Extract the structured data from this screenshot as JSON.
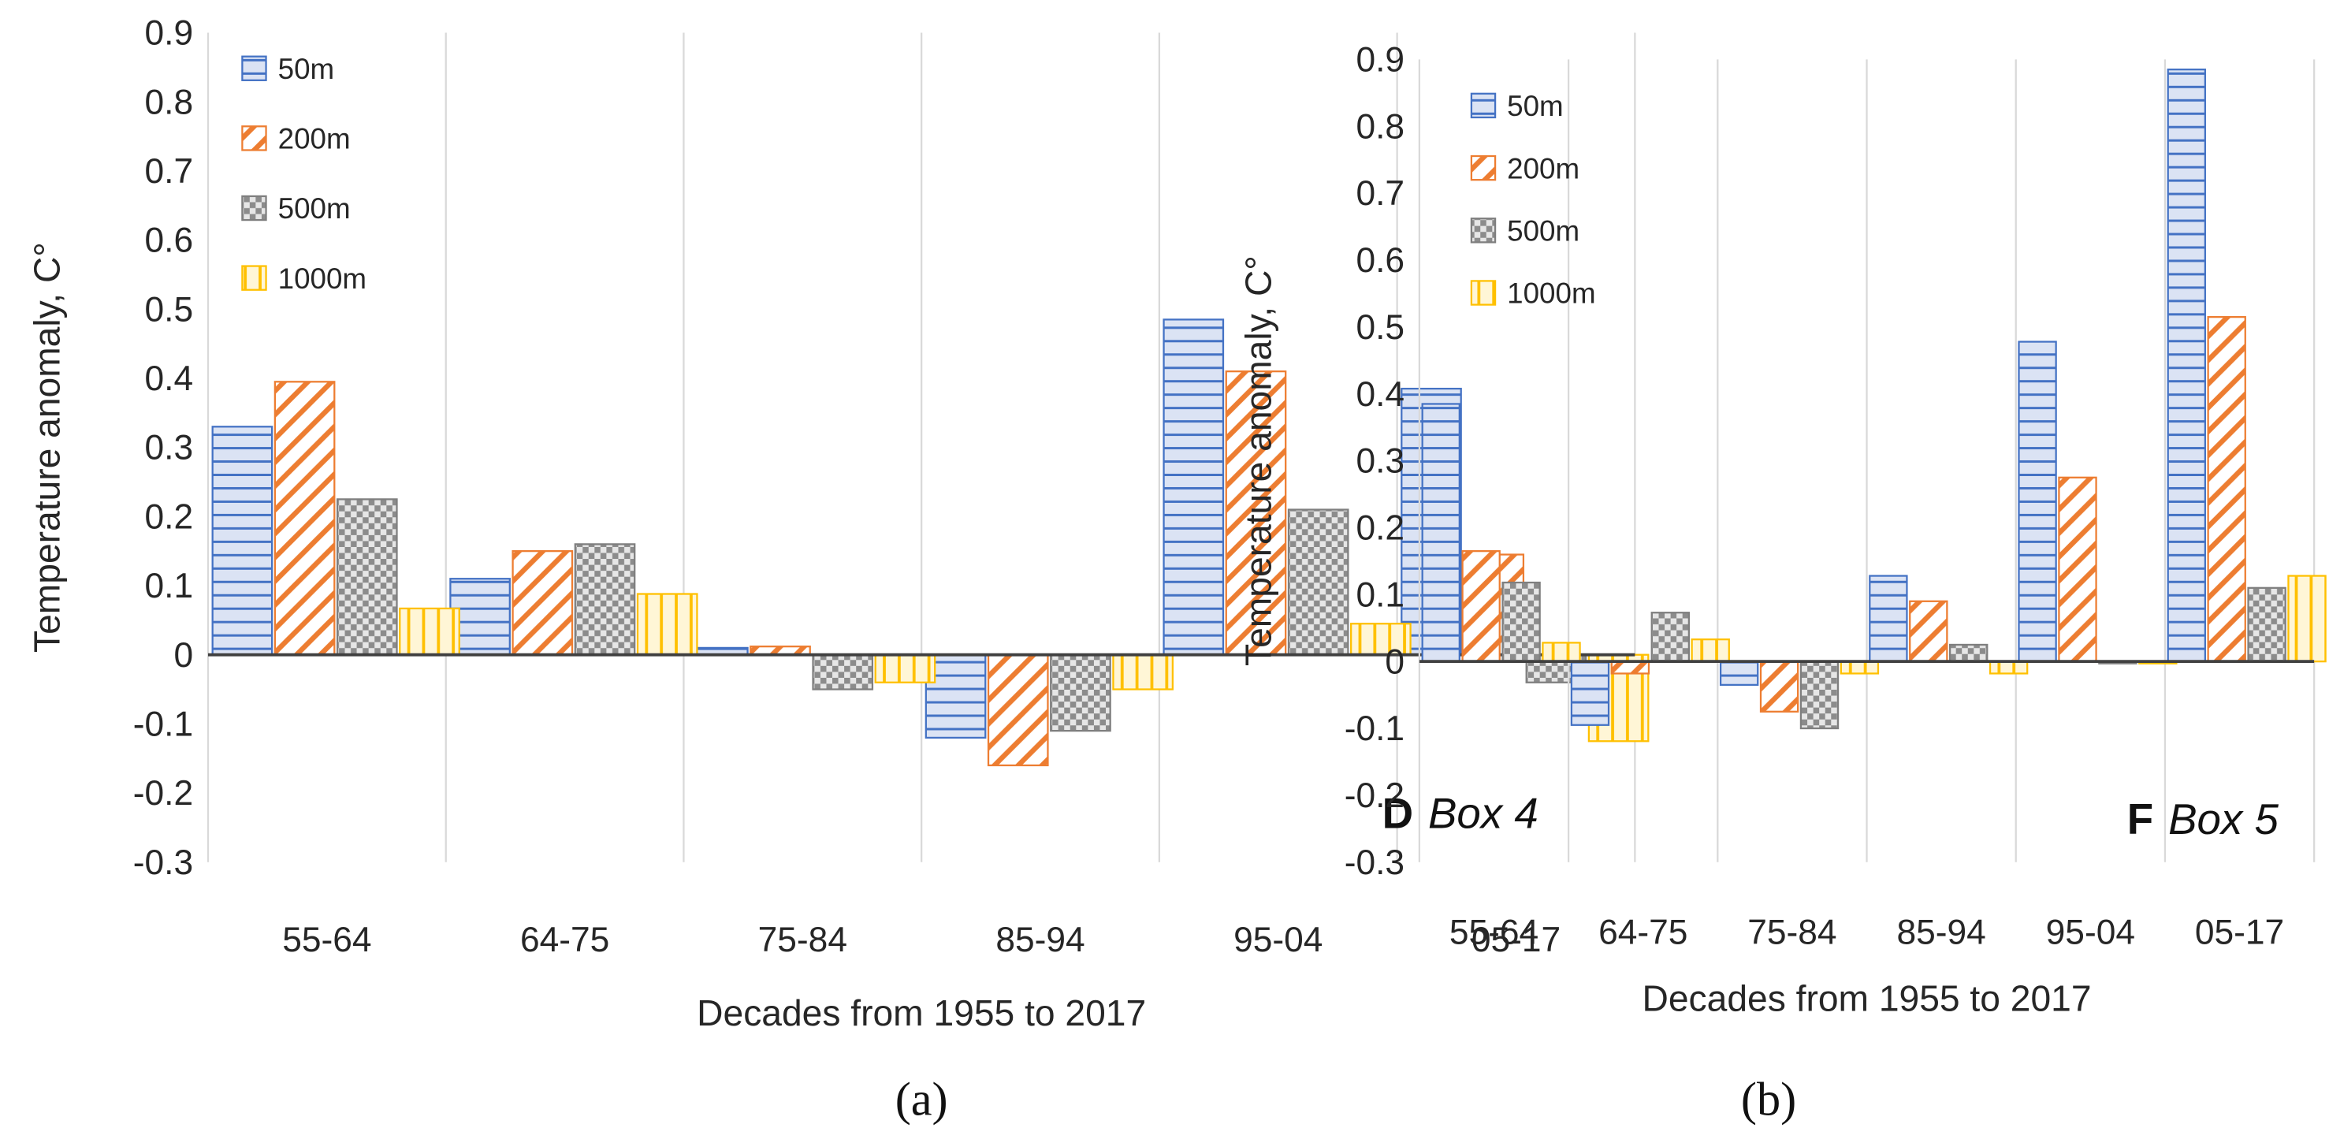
{
  "chart_data": [
    {
      "type": "bar",
      "panel_letter": "D",
      "panel_label": "Box 4",
      "caption": "(a)",
      "xlabel": "Decades from 1955 to 2017",
      "ylabel": "Temperature anomaly, C°",
      "ylim": [
        -0.3,
        0.9
      ],
      "yticks": [
        "0.9",
        "0.8",
        "0.7",
        "0.6",
        "0.5",
        "0.4",
        "0.3",
        "0.2",
        "0.1",
        "0",
        "-0.1",
        "-0.2",
        "-0.3"
      ],
      "categories": [
        "55-64",
        "64-75",
        "75-84",
        "85-94",
        "95-04",
        "05-17"
      ],
      "legend_position": "top-left",
      "grid": "vertical",
      "series": [
        {
          "name": "50m",
          "values": [
            0.33,
            0.11,
            0.01,
            -0.12,
            0.485,
            0.385
          ]
        },
        {
          "name": "200m",
          "values": [
            0.395,
            0.15,
            0.012,
            -0.16,
            0.41,
            0.145
          ]
        },
        {
          "name": "500m",
          "values": [
            0.225,
            0.16,
            -0.05,
            -0.11,
            0.21,
            -0.04
          ]
        },
        {
          "name": "1000m",
          "values": [
            0.067,
            0.088,
            -0.04,
            -0.05,
            0.045,
            -0.125
          ]
        }
      ]
    },
    {
      "type": "bar",
      "panel_letter": "F",
      "panel_label": "Box 5",
      "caption": "(b)",
      "xlabel": "Decades from 1955 to 2017",
      "ylabel": "Temperature anomaly, C°",
      "ylim": [
        -0.3,
        0.9
      ],
      "yticks": [
        "0.9",
        "0.8",
        "0.7",
        "0.6",
        "0.5",
        "0.4",
        "0.3",
        "0.2",
        "0.1",
        "0",
        "-0.1",
        "-0.2",
        "-0.3"
      ],
      "categories": [
        "55-64",
        "64-75",
        "75-84",
        "85-94",
        "95-04",
        "05-17"
      ],
      "legend_position": "top-left",
      "grid": "vertical",
      "series": [
        {
          "name": "50m",
          "values": [
            0.385,
            -0.095,
            -0.035,
            0.128,
            0.478,
            0.885
          ]
        },
        {
          "name": "200m",
          "values": [
            0.165,
            -0.018,
            -0.075,
            0.09,
            0.275,
            0.515
          ]
        },
        {
          "name": "500m",
          "values": [
            0.118,
            0.073,
            -0.1,
            0.025,
            -0.003,
            0.11
          ]
        },
        {
          "name": "1000m",
          "values": [
            0.028,
            0.033,
            -0.018,
            -0.018,
            -0.003,
            0.128
          ]
        }
      ]
    }
  ],
  "colors": {
    "50m": {
      "stroke": "#4472c4",
      "fill": "#dbe3f4"
    },
    "200m": {
      "stroke": "#ed7d31",
      "fill": "#ffffff"
    },
    "500m": {
      "stroke": "#7f7f7f",
      "fill": "#dcdcdc"
    },
    "1000m": {
      "stroke": "#ffc000",
      "fill": "#fff6d6"
    },
    "grid": "#d9d9d9",
    "axis": "#404040"
  }
}
